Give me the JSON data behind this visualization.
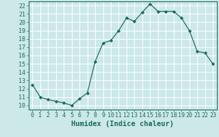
{
  "x": [
    0,
    1,
    2,
    3,
    4,
    5,
    6,
    7,
    8,
    9,
    10,
    11,
    12,
    13,
    14,
    15,
    16,
    17,
    18,
    19,
    20,
    21,
    22,
    23
  ],
  "y": [
    12.5,
    11.0,
    10.7,
    10.5,
    10.3,
    10.0,
    10.8,
    11.5,
    15.3,
    17.5,
    17.8,
    19.0,
    20.5,
    20.1,
    21.2,
    22.2,
    21.3,
    21.3,
    21.3,
    20.5,
    19.0,
    16.5,
    16.3,
    15.0
  ],
  "xlabel": "Humidex (Indice chaleur)",
  "xlim": [
    -0.5,
    23.5
  ],
  "ylim": [
    9.5,
    22.5
  ],
  "yticks": [
    10,
    11,
    12,
    13,
    14,
    15,
    16,
    17,
    18,
    19,
    20,
    21,
    22
  ],
  "xticks": [
    0,
    1,
    2,
    3,
    4,
    5,
    6,
    7,
    8,
    9,
    10,
    11,
    12,
    13,
    14,
    15,
    16,
    17,
    18,
    19,
    20,
    21,
    22,
    23
  ],
  "line_color": "#1a6b5a",
  "marker": "D",
  "marker_size": 2.2,
  "bg_color": "#cce8e8",
  "grid_color": "#ffffff",
  "tick_fontsize": 6.0,
  "xlabel_fontsize": 7.5
}
